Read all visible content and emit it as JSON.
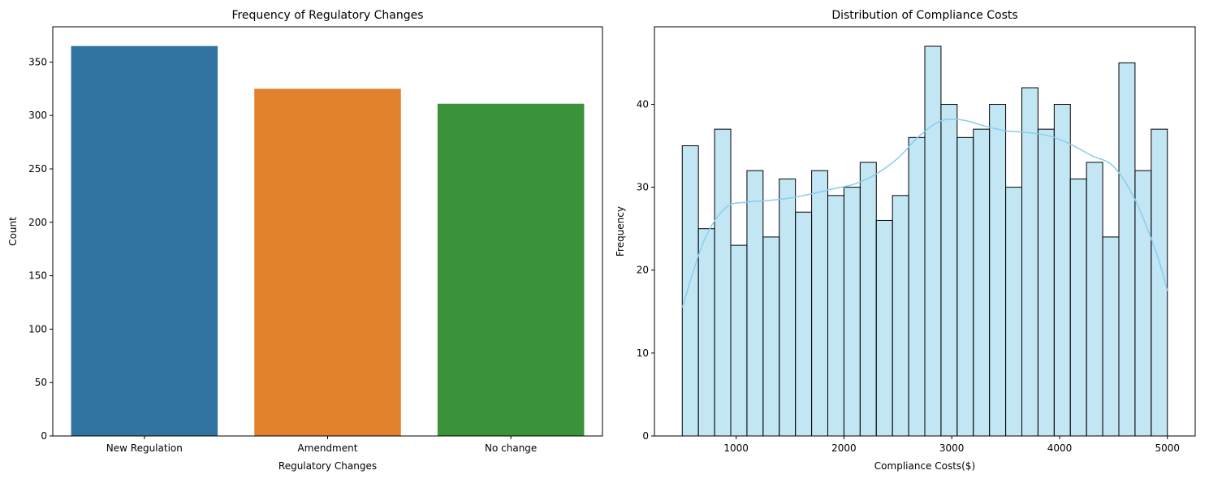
{
  "chart_data": [
    {
      "type": "bar",
      "title": "Frequency of Regulatory Changes",
      "xlabel": "Regulatory Changes",
      "ylabel": "Count",
      "categories": [
        "New Regulation",
        "Amendment",
        "No change"
      ],
      "values": [
        365,
        325,
        311
      ],
      "colors": [
        "#3274a1",
        "#e1812c",
        "#3a923a"
      ],
      "ylim": [
        0,
        383
      ],
      "yticks": [
        0,
        50,
        100,
        150,
        200,
        250,
        300,
        350
      ],
      "grid": false,
      "legend": "none"
    },
    {
      "type": "bar",
      "subtype": "histogram",
      "title": "Distribution of Compliance Costs",
      "xlabel": "Compliance Costs($)",
      "ylabel": "Frequency",
      "bin_start": 500,
      "bin_width": 150,
      "values": [
        35,
        25,
        37,
        23,
        32,
        24,
        31,
        27,
        32,
        29,
        30,
        33,
        26,
        29,
        36,
        47,
        40,
        36,
        37,
        40,
        30,
        42,
        37,
        40,
        31,
        33,
        24,
        45,
        32,
        37
      ],
      "bar_color": "#87ceeb",
      "edge_color": "#000000",
      "kde": {
        "x": [
          500,
          700,
          900,
          1100,
          1300,
          1500,
          1700,
          1900,
          2100,
          2300,
          2500,
          2700,
          2900,
          3100,
          3300,
          3500,
          3700,
          3900,
          4100,
          4300,
          4500,
          4700,
          4900,
          5000
        ],
        "y": [
          15.5,
          23.5,
          27.5,
          28.2,
          28.4,
          28.7,
          29.2,
          29.8,
          30.4,
          31.6,
          33.5,
          36.2,
          38.0,
          38.1,
          37.4,
          36.8,
          36.6,
          36.2,
          35.2,
          33.8,
          32.5,
          28.5,
          22,
          17.5
        ],
        "color": "#87ceeb"
      },
      "xlim": [
        242,
        5258
      ],
      "ylim": [
        0,
        49.35
      ],
      "xticks": [
        1000,
        2000,
        3000,
        4000,
        5000
      ],
      "yticks": [
        0,
        10,
        20,
        30,
        40
      ],
      "grid": false,
      "legend": "none"
    }
  ]
}
